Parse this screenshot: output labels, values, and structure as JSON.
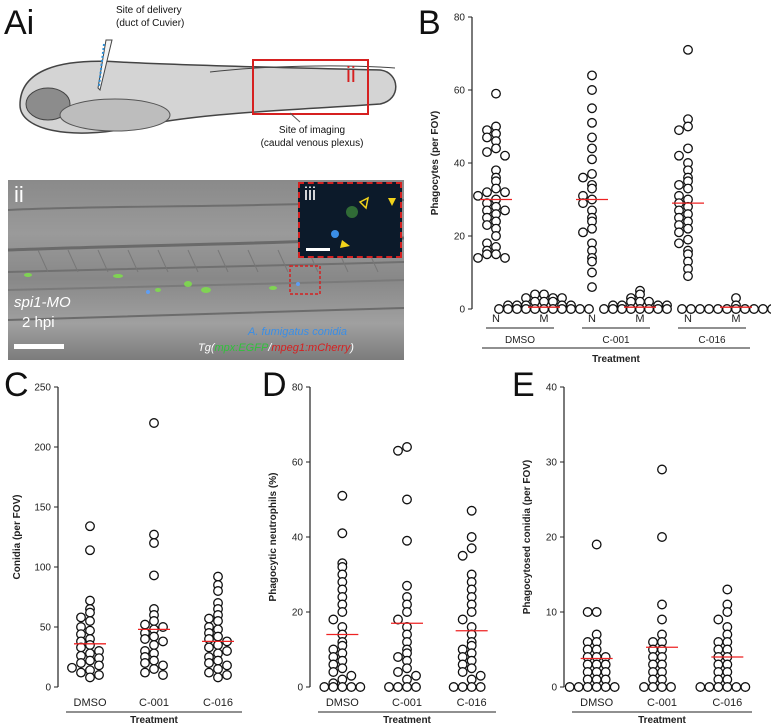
{
  "panels": {
    "Ai": "Ai",
    "B": "B",
    "C": "C",
    "D": "D",
    "E": "E",
    "ii": "ii",
    "iii": "iii"
  },
  "schematic": {
    "delivery_label_1": "Site of delivery",
    "delivery_label_2": "(duct of Cuvier)",
    "imaging_label_1": "Site of imaging",
    "imaging_label_2": "(caudal venous plexus)",
    "box_label": "ii"
  },
  "micrograph": {
    "morpholino": "spi1-MO",
    "time": "2 hpi",
    "conidia_label": "A. fumigatus conidia",
    "transgene_prefix": "Tg(",
    "transgene_green": "mpx:EGFP",
    "transgene_sep": "/",
    "transgene_red": "mpeg1:mCherry",
    "transgene_suffix": ")",
    "colors": {
      "green": "#2fc23a",
      "red": "#d62020",
      "blue": "#3a8ee6"
    }
  },
  "chart_data": [
    {
      "id": "B",
      "type": "scatter",
      "ylabel": "Phagocytes (per FOV)",
      "xlabel": "Treatment",
      "ylim": [
        0,
        80
      ],
      "yticks": [
        0,
        20,
        40,
        60,
        80
      ],
      "categories": [
        "N",
        "M",
        "N",
        "M",
        "N",
        "M"
      ],
      "groups": [
        "DMSO",
        "C-001",
        "C-016"
      ],
      "means": [
        30,
        0.5,
        30,
        0.5,
        29,
        0.5
      ],
      "series": [
        {
          "category": "N",
          "group": "DMSO",
          "values": [
            59,
            50,
            49,
            48,
            47,
            46,
            44,
            43,
            42,
            38,
            36,
            35,
            33,
            32,
            32,
            31,
            30,
            29,
            28,
            27,
            27,
            26,
            25,
            24,
            23,
            22,
            20,
            18,
            17,
            16,
            15,
            15,
            14,
            14
          ]
        },
        {
          "category": "M",
          "group": "DMSO",
          "values": [
            4,
            4,
            3,
            3,
            3,
            2,
            2,
            2,
            1,
            1,
            1,
            1,
            1,
            0,
            0,
            0,
            0,
            0,
            0,
            0,
            0,
            0,
            0,
            0
          ]
        },
        {
          "category": "N",
          "group": "C-001",
          "values": [
            64,
            60,
            55,
            51,
            47,
            44,
            41,
            37,
            36,
            34,
            33,
            31,
            30,
            29,
            27,
            25,
            24,
            22,
            21,
            18,
            16,
            14,
            13,
            10,
            6
          ]
        },
        {
          "category": "M",
          "group": "C-001",
          "values": [
            5,
            4,
            3,
            2,
            2,
            2,
            1,
            1,
            1,
            1,
            0,
            0,
            0,
            0,
            0,
            0,
            0,
            0
          ]
        },
        {
          "category": "N",
          "group": "C-016",
          "values": [
            71,
            52,
            50,
            49,
            44,
            42,
            40,
            38,
            36,
            35,
            34,
            33,
            31,
            30,
            29,
            28,
            27,
            26,
            25,
            24,
            23,
            22,
            21,
            19,
            18,
            16,
            15,
            13,
            11,
            9
          ]
        },
        {
          "category": "M",
          "group": "C-016",
          "values": [
            3,
            1,
            0,
            0,
            0,
            0,
            0,
            0,
            0,
            0,
            0,
            0,
            0,
            0
          ]
        }
      ]
    },
    {
      "id": "C",
      "type": "scatter",
      "ylabel": "Conidia (per FOV)",
      "xlabel": "Treatment",
      "ylim": [
        0,
        250
      ],
      "yticks": [
        0,
        50,
        100,
        150,
        200,
        250
      ],
      "categories": [
        "DMSO",
        "C-001",
        "C-016"
      ],
      "means": [
        36,
        48,
        38
      ],
      "series": [
        {
          "category": "DMSO",
          "values": [
            134,
            114,
            72,
            65,
            62,
            58,
            55,
            50,
            47,
            44,
            40,
            38,
            35,
            33,
            30,
            28,
            26,
            24,
            22,
            20,
            18,
            16,
            14,
            12,
            10,
            8
          ]
        },
        {
          "category": "C-001",
          "values": [
            220,
            127,
            120,
            93,
            65,
            60,
            55,
            52,
            50,
            48,
            45,
            42,
            40,
            38,
            35,
            30,
            28,
            25,
            22,
            20,
            18,
            15,
            12,
            10
          ]
        },
        {
          "category": "C-016",
          "values": [
            92,
            85,
            80,
            70,
            65,
            60,
            57,
            55,
            50,
            48,
            45,
            42,
            40,
            38,
            35,
            33,
            30,
            28,
            25,
            22,
            20,
            18,
            15,
            12,
            10,
            8
          ]
        }
      ]
    },
    {
      "id": "D",
      "type": "scatter",
      "ylabel": "Phagocytic neutrophils (%)",
      "xlabel": "Treatment",
      "ylim": [
        0,
        80
      ],
      "yticks": [
        0,
        20,
        40,
        60,
        80
      ],
      "categories": [
        "DMSO",
        "C-001",
        "C-016"
      ],
      "means": [
        14,
        17,
        15
      ],
      "series": [
        {
          "category": "DMSO",
          "values": [
            51,
            41,
            33,
            32,
            30,
            28,
            26,
            24,
            22,
            20,
            18,
            16,
            14,
            12,
            11,
            10,
            9,
            8,
            7,
            6,
            5,
            4,
            3,
            2,
            1,
            0,
            0,
            0,
            0,
            0
          ]
        },
        {
          "category": "C-001",
          "values": [
            64,
            63,
            50,
            39,
            27,
            24,
            22,
            20,
            18,
            16,
            14,
            12,
            10,
            9,
            8,
            7,
            5,
            4,
            3,
            2,
            0,
            0,
            0,
            0
          ]
        },
        {
          "category": "C-016",
          "values": [
            47,
            40,
            37,
            35,
            30,
            28,
            26,
            24,
            22,
            20,
            18,
            16,
            14,
            12,
            11,
            10,
            9,
            8,
            7,
            6,
            5,
            4,
            3,
            2,
            0,
            0,
            0,
            0
          ]
        }
      ]
    },
    {
      "id": "E",
      "type": "scatter",
      "ylabel": "Phagocytosed conidia (per FOV)",
      "xlabel": "Treatment",
      "ylim": [
        0,
        40
      ],
      "yticks": [
        0,
        10,
        20,
        30,
        40
      ],
      "categories": [
        "DMSO",
        "C-001",
        "C-016"
      ],
      "means": [
        3.8,
        5.3,
        4.0
      ],
      "series": [
        {
          "category": "DMSO",
          "values": [
            19,
            10,
            10,
            7,
            6,
            6,
            5,
            5,
            4,
            4,
            4,
            3,
            3,
            3,
            2,
            2,
            2,
            1,
            1,
            1,
            0,
            0,
            0,
            0,
            0,
            0
          ]
        },
        {
          "category": "C-001",
          "values": [
            29,
            20,
            11,
            9,
            7,
            6,
            6,
            5,
            5,
            4,
            4,
            3,
            3,
            2,
            2,
            1,
            1,
            0,
            0,
            0,
            0
          ]
        },
        {
          "category": "C-016",
          "values": [
            13,
            11,
            10,
            9,
            8,
            7,
            6,
            6,
            5,
            5,
            4,
            4,
            3,
            3,
            2,
            2,
            1,
            1,
            0,
            0,
            0,
            0,
            0,
            0
          ]
        }
      ]
    }
  ]
}
